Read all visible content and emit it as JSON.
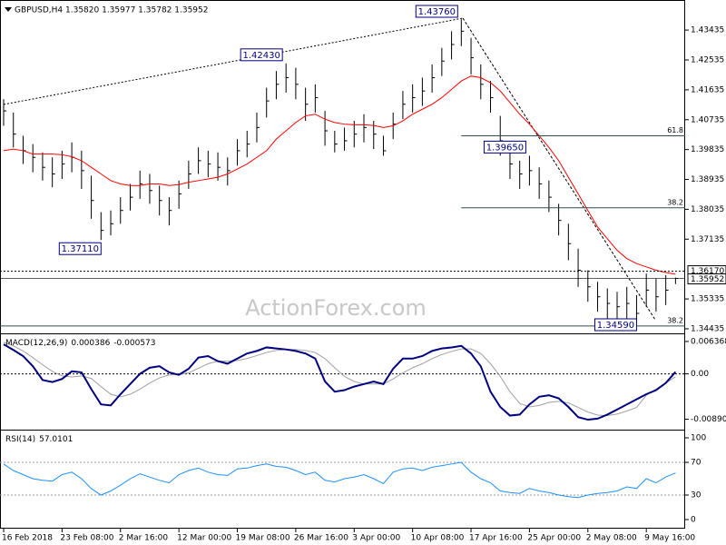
{
  "chart_data": [
    {
      "type": "ohlc",
      "title": "GBPUSD,H4  1.35820 1.35977 1.35782 1.35952",
      "watermark": "ActionForex.com",
      "color": "#000000",
      "categories": [
        "16 Feb 2018",
        null,
        null,
        null,
        null,
        null,
        "23 Feb 08:00",
        null,
        null,
        null,
        null,
        null,
        "2 Mar 16:00",
        null,
        null,
        null,
        null,
        null,
        "12 Mar 00:00",
        null,
        null,
        null,
        null,
        null,
        "19 Mar 08:00",
        null,
        null,
        null,
        null,
        null,
        "26 Mar 16:00",
        null,
        null,
        null,
        null,
        null,
        "3 Apr 00:00",
        null,
        null,
        null,
        null,
        null,
        "10 Apr 08:00",
        null,
        null,
        null,
        null,
        null,
        "17 Apr 16:00",
        null,
        null,
        null,
        null,
        null,
        "25 Apr 00:00",
        null,
        null,
        null,
        null,
        null,
        "2 May 08:00",
        null,
        null,
        null,
        null,
        null,
        "9 May 16:00",
        null,
        null,
        null
      ],
      "high": [
        1.4135,
        1.4095,
        1.4025,
        1.4,
        1.3975,
        1.396,
        1.398,
        1.4005,
        1.398,
        1.3905,
        1.3795,
        1.38,
        1.384,
        1.388,
        1.392,
        1.391,
        1.3875,
        1.384,
        1.389,
        1.395,
        1.399,
        1.398,
        1.3975,
        1.396,
        1.4015,
        1.404,
        1.4095,
        1.417,
        1.422,
        1.4243,
        1.423,
        1.417,
        1.418,
        1.41,
        1.404,
        1.405,
        1.407,
        1.409,
        1.407,
        1.4025,
        1.4095,
        1.416,
        1.418,
        1.42,
        1.424,
        1.429,
        1.434,
        1.4376,
        1.432,
        1.424,
        1.419,
        1.4085,
        1.399,
        1.395,
        1.3965,
        1.393,
        1.389,
        1.382,
        1.376,
        1.3685,
        1.362,
        1.3585,
        1.3565,
        1.3555,
        1.357,
        1.3545,
        1.361,
        1.3595,
        1.3605,
        1.35977
      ],
      "low": [
        1.4055,
        1.399,
        1.394,
        1.3915,
        1.389,
        1.387,
        1.3895,
        1.3915,
        1.3865,
        1.3775,
        1.3711,
        1.3725,
        1.376,
        1.38,
        1.3835,
        1.382,
        1.3785,
        1.3755,
        1.3805,
        1.3865,
        1.391,
        1.39,
        1.389,
        1.3875,
        1.3935,
        1.396,
        1.4005,
        1.408,
        1.4135,
        1.4155,
        1.4135,
        1.407,
        1.4095,
        1.3995,
        1.3975,
        1.398,
        1.399,
        1.4005,
        1.3985,
        1.3965,
        1.4015,
        1.4075,
        1.4095,
        1.4115,
        1.4155,
        1.4205,
        1.4255,
        1.4295,
        1.421,
        1.4135,
        1.4095,
        1.3965,
        1.3895,
        1.3865,
        1.3875,
        1.3835,
        1.3795,
        1.3725,
        1.365,
        1.357,
        1.3525,
        1.3495,
        1.3475,
        1.3465,
        1.3475,
        1.3459,
        1.351,
        1.3495,
        1.3515,
        1.35782
      ],
      "close": [
        1.41,
        1.403,
        1.398,
        1.396,
        1.393,
        1.391,
        1.394,
        1.396,
        1.392,
        1.383,
        1.374,
        1.376,
        1.38,
        1.384,
        1.388,
        1.386,
        1.383,
        1.38,
        1.385,
        1.391,
        1.395,
        1.394,
        1.393,
        1.392,
        1.398,
        1.4,
        1.405,
        1.413,
        1.418,
        1.42,
        1.418,
        1.412,
        1.414,
        1.404,
        1.4,
        1.401,
        1.403,
        1.405,
        1.403,
        1.398,
        1.406,
        1.412,
        1.414,
        1.416,
        1.42,
        1.425,
        1.43,
        1.434,
        1.426,
        1.418,
        1.414,
        1.401,
        1.394,
        1.391,
        1.392,
        1.388,
        1.384,
        1.377,
        1.37,
        1.362,
        1.357,
        1.354,
        1.352,
        1.351,
        1.352,
        1.349,
        1.356,
        1.354,
        1.356,
        1.35952
      ],
      "series": [
        {
          "color": "#ff0000",
          "values": [
            1.398,
            1.3985,
            1.398,
            1.397,
            1.397,
            1.397,
            1.3968,
            1.3962,
            1.395,
            1.393,
            1.391,
            1.389,
            1.388,
            1.3875,
            1.3875,
            1.388,
            1.388,
            1.3875,
            1.3878,
            1.3885,
            1.389,
            1.3895,
            1.39,
            1.391,
            1.3925,
            1.394,
            1.396,
            1.398,
            1.4015,
            1.404,
            1.4065,
            1.4085,
            1.409,
            1.4075,
            1.4065,
            1.406,
            1.4058,
            1.4058,
            1.4056,
            1.405,
            1.4055,
            1.407,
            1.409,
            1.4105,
            1.412,
            1.414,
            1.4165,
            1.419,
            1.4205,
            1.42,
            1.4185,
            1.416,
            1.4125,
            1.409,
            1.406,
            1.4025,
            1.399,
            1.395,
            1.39,
            1.385,
            1.38,
            1.375,
            1.3715,
            1.368,
            1.3655,
            1.364,
            1.363,
            1.362,
            1.3613,
            1.3608
          ]
        }
      ],
      "ylim": [
        1.34325,
        1.44231
      ],
      "yticks": [
        1.43435,
        1.42535,
        1.41635,
        1.40735,
        1.39835,
        1.38935,
        1.38035,
        1.37135,
        1.35335,
        1.34435
      ],
      "levels": [
        {
          "value": 1.3617,
          "label": "1.36170"
        }
      ],
      "annotations": [
        {
          "value": 1.4376,
          "label": "1.43760"
        },
        {
          "value": 1.4243,
          "label": "1.42430"
        },
        {
          "value": 1.3965,
          "label": "1.39650"
        },
        {
          "value": 1.3711,
          "label": "1.37110"
        },
        {
          "value": 1.3459,
          "label": "1.34590"
        }
      ],
      "fib_levels": [
        {
          "ratio": 61.8,
          "value": 1.4025
        },
        {
          "ratio": 38.2,
          "value": 1.3808
        }
      ],
      "lower_fib": {
        "ratio": 38.2,
        "value": 1.3452
      }
    },
    {
      "type": "line",
      "title": "MACD(12,26,9)",
      "series": [
        {
          "color": "#000080",
          "values": [
            0.0058,
            0.0047,
            0.0035,
            0.0015,
            -0.0012,
            -0.0016,
            -0.001,
            0.0005,
            0.0003,
            -0.003,
            -0.006,
            -0.0062,
            -0.004,
            -0.002,
            0.0,
            0.0012,
            0.0015,
            0.0003,
            -0.0002,
            0.001,
            0.0032,
            0.0035,
            0.0025,
            0.002,
            0.003,
            0.004,
            0.0045,
            0.0052,
            0.005,
            0.0048,
            0.0045,
            0.004,
            0.003,
            -0.0015,
            -0.0035,
            -0.0032,
            -0.0025,
            -0.002,
            -0.0015,
            -0.002,
            0.001,
            0.003,
            0.003,
            0.0035,
            0.0045,
            0.005,
            0.0052,
            0.0055,
            0.004,
            0.0015,
            -0.0035,
            -0.0065,
            -0.0082,
            -0.008,
            -0.006,
            -0.0045,
            -0.0042,
            -0.0048,
            -0.0065,
            -0.0085,
            -0.009,
            -0.0088,
            -0.008,
            -0.007,
            -0.006,
            -0.005,
            -0.004,
            -0.0032,
            -0.0018,
            0.000386
          ]
        },
        {
          "color": "#a0a0a0",
          "values": [
            0.0062,
            0.0055,
            0.0045,
            0.0032,
            0.0018,
            0.0005,
            -0.0004,
            -0.0006,
            -0.0004,
            -0.0009,
            -0.0025,
            -0.004,
            -0.0045,
            -0.004,
            -0.003,
            -0.0018,
            -0.0008,
            -0.0002,
            -0.0001,
            0.0002,
            0.0011,
            0.002,
            0.0025,
            0.0025,
            0.0026,
            0.003,
            0.0036,
            0.0042,
            0.0046,
            0.0048,
            0.0048,
            0.0046,
            0.0042,
            0.003,
            0.0012,
            -0.0005,
            -0.0015,
            -0.002,
            -0.002,
            -0.002,
            -0.001,
            0.0002,
            0.0012,
            0.002,
            0.003,
            0.0038,
            0.0044,
            0.0049,
            0.0049,
            0.004,
            0.002,
            -0.0005,
            -0.0035,
            -0.0058,
            -0.0065,
            -0.0062,
            -0.0056,
            -0.0054,
            -0.0057,
            -0.0066,
            -0.0075,
            -0.0081,
            -0.0082,
            -0.0079,
            -0.0073,
            -0.0066,
            -0.0042,
            -0.003,
            -0.0018,
            -0.000573
          ]
        }
      ],
      "ylim": [
        -0.0106,
        0.0076
      ],
      "yticks": [
        0.006368,
        {
          "value": 0,
          "label": "0.00"
        },
        -0.008903
      ],
      "zero_line": true
    },
    {
      "type": "line",
      "title": "RSI(14)",
      "series": [
        {
          "color": "#1e90ff",
          "values": [
            68,
            60,
            55,
            50,
            48,
            47,
            55,
            58,
            50,
            38,
            30,
            35,
            42,
            50,
            56,
            52,
            48,
            45,
            55,
            60,
            63,
            58,
            55,
            54,
            62,
            63,
            66,
            68,
            65,
            64,
            60,
            55,
            58,
            48,
            46,
            50,
            52,
            55,
            50,
            44,
            58,
            62,
            63,
            60,
            64,
            66,
            68,
            70,
            58,
            50,
            45,
            35,
            33,
            32,
            38,
            35,
            33,
            30,
            28,
            27,
            30,
            32,
            33,
            35,
            40,
            38,
            50,
            45,
            52,
            57.0101
          ]
        }
      ],
      "ylim": [
        -8.9,
        107.8
      ],
      "yticks": [
        100,
        70,
        30,
        0
      ],
      "levels": [
        70,
        30
      ]
    }
  ]
}
